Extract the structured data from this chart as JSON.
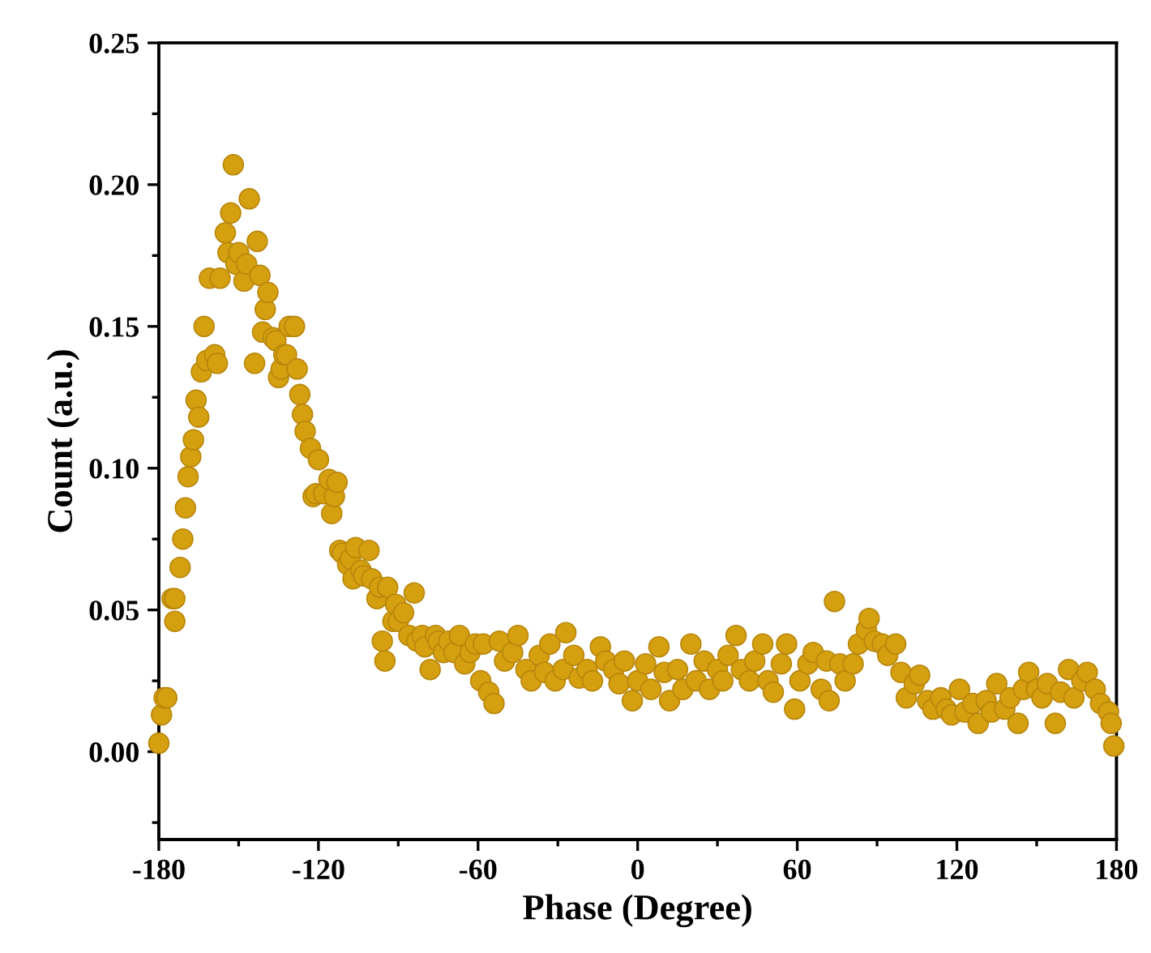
{
  "chart_data": {
    "type": "scatter",
    "xlabel": "Phase (Degree)",
    "ylabel": "Count (a.u.)",
    "marker": "circle",
    "grid": false,
    "legend": false,
    "xlim": [
      -180,
      180
    ],
    "xticks": [
      -180,
      -120,
      -60,
      0,
      60,
      120,
      180
    ],
    "ylim": [
      -0.031,
      0.25
    ],
    "yticks": [
      {
        "value": 0,
        "label": "0.00"
      },
      {
        "value": 0.05,
        "label": "0.05"
      },
      {
        "value": 0.1,
        "label": "0.10"
      },
      {
        "value": 0.15,
        "label": "0.15"
      },
      {
        "value": 0.2,
        "label": "0.20"
      },
      {
        "value": 0.25,
        "label": "0.25"
      }
    ],
    "series": [
      {
        "color": "#d4a010",
        "x": [
          -180,
          -179,
          -178,
          -177,
          -175,
          -174,
          -174,
          -172,
          -171,
          -170,
          -169,
          -168,
          -167,
          -166,
          -165,
          -164,
          -163,
          -162,
          -161,
          -159,
          -158,
          -157,
          -155,
          -154,
          -153,
          -152,
          -151,
          -150,
          -148,
          -147,
          -146,
          -144,
          -143,
          -142,
          -141,
          -140,
          -139,
          -137,
          -136,
          -135,
          -134,
          -133,
          -132,
          -131,
          -129,
          -128,
          -127,
          -126,
          -125,
          -123,
          -122,
          -121,
          -120,
          -118,
          -116,
          -115,
          -114,
          -113,
          -112,
          -111,
          -109,
          -108,
          -107,
          -106,
          -104,
          -103,
          -101,
          -100,
          -98,
          -97,
          -96,
          -95,
          -94,
          -92,
          -91,
          -90,
          -88,
          -86,
          -84,
          -83,
          -81,
          -80,
          -78,
          -76,
          -75,
          -73,
          -71,
          -69,
          -67,
          -65,
          -63,
          -61,
          -59,
          -58,
          -56,
          -54,
          -52,
          -50,
          -47,
          -45,
          -42,
          -40,
          -37,
          -35,
          -33,
          -31,
          -28,
          -27,
          -24,
          -22,
          -19,
          -17,
          -14,
          -12,
          -9,
          -7,
          -5,
          -2,
          0,
          3,
          5,
          8,
          10,
          12,
          15,
          17,
          20,
          22,
          25,
          27,
          30,
          32,
          34,
          37,
          39,
          42,
          44,
          47,
          49,
          51,
          54,
          56,
          59,
          61,
          64,
          66,
          69,
          71,
          72,
          74,
          76,
          78,
          81,
          83,
          86,
          87,
          89,
          92,
          94,
          97,
          99,
          101,
          104,
          106,
          109,
          111,
          114,
          116,
          118,
          121,
          123,
          126,
          128,
          131,
          133,
          135,
          138,
          140,
          143,
          145,
          147,
          150,
          152,
          154,
          157,
          159,
          162,
          164,
          167,
          169,
          172,
          174,
          177,
          178,
          179
        ],
        "values": [
          0.003,
          0.013,
          0.019,
          0.019,
          0.054,
          0.054,
          0.046,
          0.065,
          0.075,
          0.086,
          0.097,
          0.104,
          0.11,
          0.124,
          0.118,
          0.134,
          0.15,
          0.138,
          0.167,
          0.14,
          0.137,
          0.167,
          0.183,
          0.176,
          0.19,
          0.207,
          0.172,
          0.176,
          0.166,
          0.172,
          0.195,
          0.137,
          0.18,
          0.168,
          0.148,
          0.156,
          0.162,
          0.146,
          0.145,
          0.132,
          0.135,
          0.14,
          0.14,
          0.15,
          0.15,
          0.135,
          0.126,
          0.119,
          0.113,
          0.107,
          0.09,
          0.091,
          0.103,
          0.091,
          0.096,
          0.084,
          0.09,
          0.095,
          0.071,
          0.07,
          0.066,
          0.068,
          0.061,
          0.072,
          0.064,
          0.062,
          0.071,
          0.061,
          0.054,
          0.058,
          0.039,
          0.032,
          0.058,
          0.046,
          0.052,
          0.046,
          0.049,
          0.041,
          0.056,
          0.039,
          0.041,
          0.037,
          0.029,
          0.041,
          0.039,
          0.035,
          0.039,
          0.035,
          0.041,
          0.031,
          0.035,
          0.038,
          0.025,
          0.038,
          0.021,
          0.017,
          0.039,
          0.032,
          0.035,
          0.041,
          0.029,
          0.025,
          0.034,
          0.028,
          0.038,
          0.025,
          0.029,
          0.042,
          0.034,
          0.026,
          0.029,
          0.025,
          0.037,
          0.032,
          0.029,
          0.024,
          0.032,
          0.018,
          0.025,
          0.031,
          0.022,
          0.037,
          0.028,
          0.018,
          0.029,
          0.022,
          0.038,
          0.025,
          0.032,
          0.022,
          0.029,
          0.025,
          0.034,
          0.041,
          0.029,
          0.025,
          0.032,
          0.038,
          0.025,
          0.021,
          0.031,
          0.038,
          0.015,
          0.025,
          0.031,
          0.035,
          0.022,
          0.032,
          0.018,
          0.053,
          0.031,
          0.025,
          0.031,
          0.038,
          0.043,
          0.047,
          0.039,
          0.038,
          0.034,
          0.038,
          0.028,
          0.019,
          0.024,
          0.027,
          0.018,
          0.015,
          0.019,
          0.015,
          0.013,
          0.022,
          0.014,
          0.017,
          0.01,
          0.018,
          0.014,
          0.024,
          0.015,
          0.019,
          0.01,
          0.022,
          0.028,
          0.022,
          0.019,
          0.024,
          0.01,
          0.021,
          0.029,
          0.019,
          0.025,
          0.028,
          0.022,
          0.017,
          0.014,
          0.01,
          0.002
        ]
      }
    ]
  }
}
